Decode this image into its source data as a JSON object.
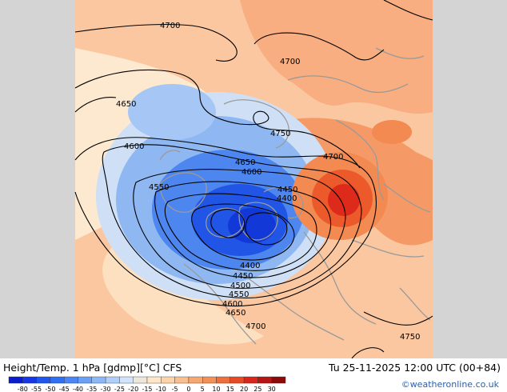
{
  "title": "Height/Temp. 1 hPa [gdmp][°C] CFS",
  "valid_time": "Tu 25-11-2025 12:00 UTC (00+84)",
  "credit": "©weatheronline.co.uk",
  "colorbar": {
    "labels": [
      "-80",
      "-55",
      "-50",
      "-45",
      "-40",
      "-35",
      "-30",
      "-25",
      "-20",
      "-15",
      "-10",
      "-5",
      "0",
      "5",
      "10",
      "15",
      "20",
      "25",
      "30"
    ],
    "colors": [
      "#0a1bd0",
      "#1537e8",
      "#1f56f0",
      "#2f6ff5",
      "#4a86f5",
      "#6aa0f5",
      "#8cb8f7",
      "#b0cff8",
      "#d2e4fb",
      "#ece7dc",
      "#fde7c8",
      "#fcd4aa",
      "#f9bf8e",
      "#f6a870",
      "#f39055",
      "#ef6f3c",
      "#e84a25",
      "#d8261a",
      "#b81414",
      "#8c0a0a"
    ]
  },
  "contour_labels": [
    {
      "text": "4700"
    },
    {
      "text": "4700"
    },
    {
      "text": "4650"
    },
    {
      "text": "4750"
    },
    {
      "text": "4700"
    },
    {
      "text": "4600"
    },
    {
      "text": "4650"
    },
    {
      "text": "4600"
    },
    {
      "text": "4550"
    },
    {
      "text": "4450"
    },
    {
      "text": "4400"
    },
    {
      "text": "4400"
    },
    {
      "text": "4450"
    },
    {
      "text": "4500"
    },
    {
      "text": "4550"
    },
    {
      "text": "4600"
    },
    {
      "text": "4650"
    },
    {
      "text": "4700"
    },
    {
      "text": "4750"
    }
  ],
  "colors": {
    "cold_core": "#1a4fe0",
    "warm_core": "#e8321c",
    "background_warm": "#fbc9a0",
    "coastline": "#9a9a9a",
    "contour": "#000000"
  }
}
